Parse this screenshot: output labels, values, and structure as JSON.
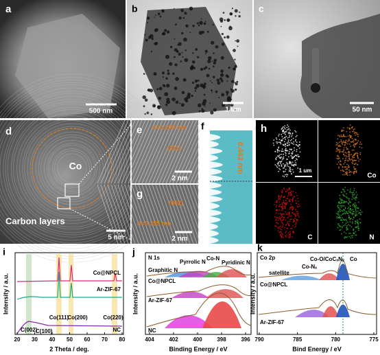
{
  "panels": {
    "a": {
      "label": "a",
      "scale_bar": "500 nm"
    },
    "b": {
      "label": "b",
      "scale_bar": "1 um"
    },
    "c": {
      "label": "c",
      "scale_bar": "50 nm"
    },
    "d": {
      "label": "d",
      "core": "Co",
      "shell": "Carbon layers",
      "scale_bar": "5 nm"
    },
    "e": {
      "label": "e",
      "spacing": "d=0.209 nm",
      "plane": "(111)",
      "scale_bar": "2 nm"
    },
    "f": {
      "label": "f",
      "spacing": "0.442 nm"
    },
    "g": {
      "label": "g",
      "plane": "(002)",
      "spacing": "d=0.355 nm",
      "scale_bar": "2 nm"
    },
    "h": {
      "label": "h",
      "scale_bar": "1 um",
      "maps": [
        "Co",
        "C",
        "N"
      ]
    },
    "i": {
      "label": "i",
      "y_label": "Intensity / a.u.",
      "x_label": "2 Theta / deg.",
      "samples": [
        "Co@NPCL",
        "Ar-ZIF-67",
        "NC"
      ],
      "peaks": [
        "Co(111)",
        "Co(200)",
        "Co(220)",
        "C(002)",
        "C(100)"
      ],
      "xticks": [
        20,
        30,
        40,
        50,
        60,
        70,
        80
      ]
    },
    "j": {
      "label": "j",
      "region": "N 1s",
      "y_label": "Intensity / a.u.",
      "x_label": "Binding Energy / eV",
      "components": [
        "Graphitic N",
        "Pyrrolic N",
        "Co-N",
        "Pyridinic N"
      ],
      "samples": [
        "Co@NPCL",
        "Ar-ZIF-67",
        "NC"
      ],
      "xticks": [
        404,
        402,
        400,
        398,
        396
      ]
    },
    "k": {
      "label": "k",
      "region": "Co 2p",
      "y_label": "Intensity / a.u.",
      "x_label": "Bind Energy / eV",
      "components": [
        "satellite",
        "Co-Nₓ",
        "Co-O/CoCₓNᵧ",
        "Co"
      ],
      "samples": [
        "Co@NPCL",
        "Ar-ZIF-67"
      ],
      "xticks": [
        790,
        785,
        780,
        775
      ]
    }
  }
}
